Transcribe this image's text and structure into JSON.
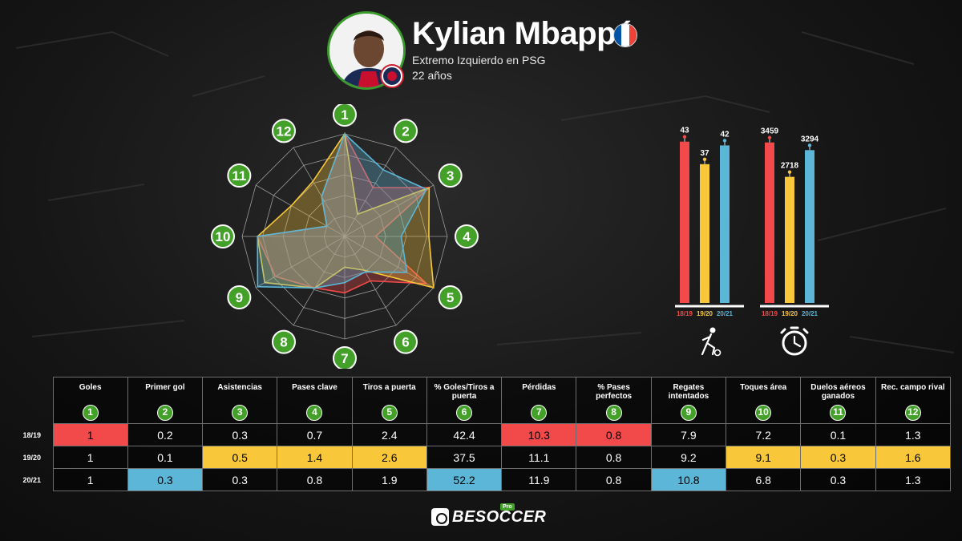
{
  "header": {
    "name": "Kylian Mbappé",
    "position": "Extremo Izquierdo en PSG",
    "age": "22 años",
    "flag_colors": [
      "#0055a4",
      "#ffffff",
      "#ef4135"
    ]
  },
  "colors": {
    "s1819": "#f24a4a",
    "s1920": "#f8c83a",
    "s2021": "#5cb6d8",
    "badge": "#43a12a"
  },
  "chart_data": [
    {
      "type": "radar",
      "axes": [
        "1",
        "2",
        "3",
        "4",
        "5",
        "6",
        "7",
        "8",
        "9",
        "10",
        "11",
        "12"
      ],
      "series": [
        {
          "name": "18/19",
          "color": "#f24a4a",
          "values": [
            1.0,
            0.55,
            0.95,
            0.3,
            0.92,
            0.5,
            0.55,
            0.58,
            0.78,
            0.85,
            0.2,
            0.45
          ]
        },
        {
          "name": "19/20",
          "color": "#f8c83a",
          "values": [
            1.0,
            0.25,
            0.95,
            0.82,
            1.0,
            0.38,
            0.3,
            0.58,
            0.9,
            0.85,
            0.6,
            0.62
          ]
        },
        {
          "name": "20/21",
          "color": "#5cb6d8",
          "values": [
            1.0,
            0.75,
            0.92,
            0.55,
            0.7,
            0.4,
            0.45,
            0.58,
            0.98,
            0.85,
            0.2,
            0.45
          ]
        }
      ]
    },
    {
      "type": "bar",
      "icon": "player-dribbling-icon",
      "categories": [
        "18/19",
        "19/20",
        "20/21"
      ],
      "values": [
        43,
        37,
        42
      ],
      "ylim": [
        0,
        47
      ]
    },
    {
      "type": "bar",
      "icon": "stopwatch-icon",
      "categories": [
        "18/19",
        "19/20",
        "20/21"
      ],
      "values": [
        3459,
        2718,
        3294
      ],
      "ylim": [
        0,
        3800
      ]
    },
    {
      "type": "table",
      "columns": [
        {
          "label": "Goles",
          "badge": "1"
        },
        {
          "label": "Primer gol",
          "badge": "2"
        },
        {
          "label": "Asistencias",
          "badge": "3"
        },
        {
          "label": "Pases clave",
          "badge": "4"
        },
        {
          "label": "Tiros a puerta",
          "badge": "5"
        },
        {
          "label": "% Goles/Tiros a puerta",
          "badge": "6"
        },
        {
          "label": "Pérdidas",
          "badge": "7"
        },
        {
          "label": "% Pases perfectos",
          "badge": "8"
        },
        {
          "label": "Regates intentados",
          "badge": "9"
        },
        {
          "label": "Toques área",
          "badge": "10"
        },
        {
          "label": "Duelos aéreos ganados",
          "badge": "11"
        },
        {
          "label": "Rec. campo rival",
          "badge": "12"
        }
      ],
      "rows": [
        {
          "season": "18/19",
          "values": [
            "1",
            "0.2",
            "0.3",
            "0.7",
            "2.4",
            "42.4",
            "10.3",
            "0.8",
            "7.9",
            "7.2",
            "0.1",
            "1.3"
          ],
          "highlight": [
            0,
            6,
            7
          ]
        },
        {
          "season": "19/20",
          "values": [
            "1",
            "0.1",
            "0.5",
            "1.4",
            "2.6",
            "37.5",
            "11.1",
            "0.8",
            "9.2",
            "9.1",
            "0.3",
            "1.6"
          ],
          "highlight": [
            2,
            3,
            4,
            9,
            10,
            11
          ]
        },
        {
          "season": "20/21",
          "values": [
            "1",
            "0.3",
            "0.3",
            "0.8",
            "1.9",
            "52.2",
            "11.9",
            "0.8",
            "10.8",
            "6.8",
            "0.3",
            "1.3"
          ],
          "highlight": [
            1,
            5,
            8
          ]
        }
      ]
    }
  ],
  "brand": {
    "name": "BESOCCER",
    "tag": "Pro"
  }
}
